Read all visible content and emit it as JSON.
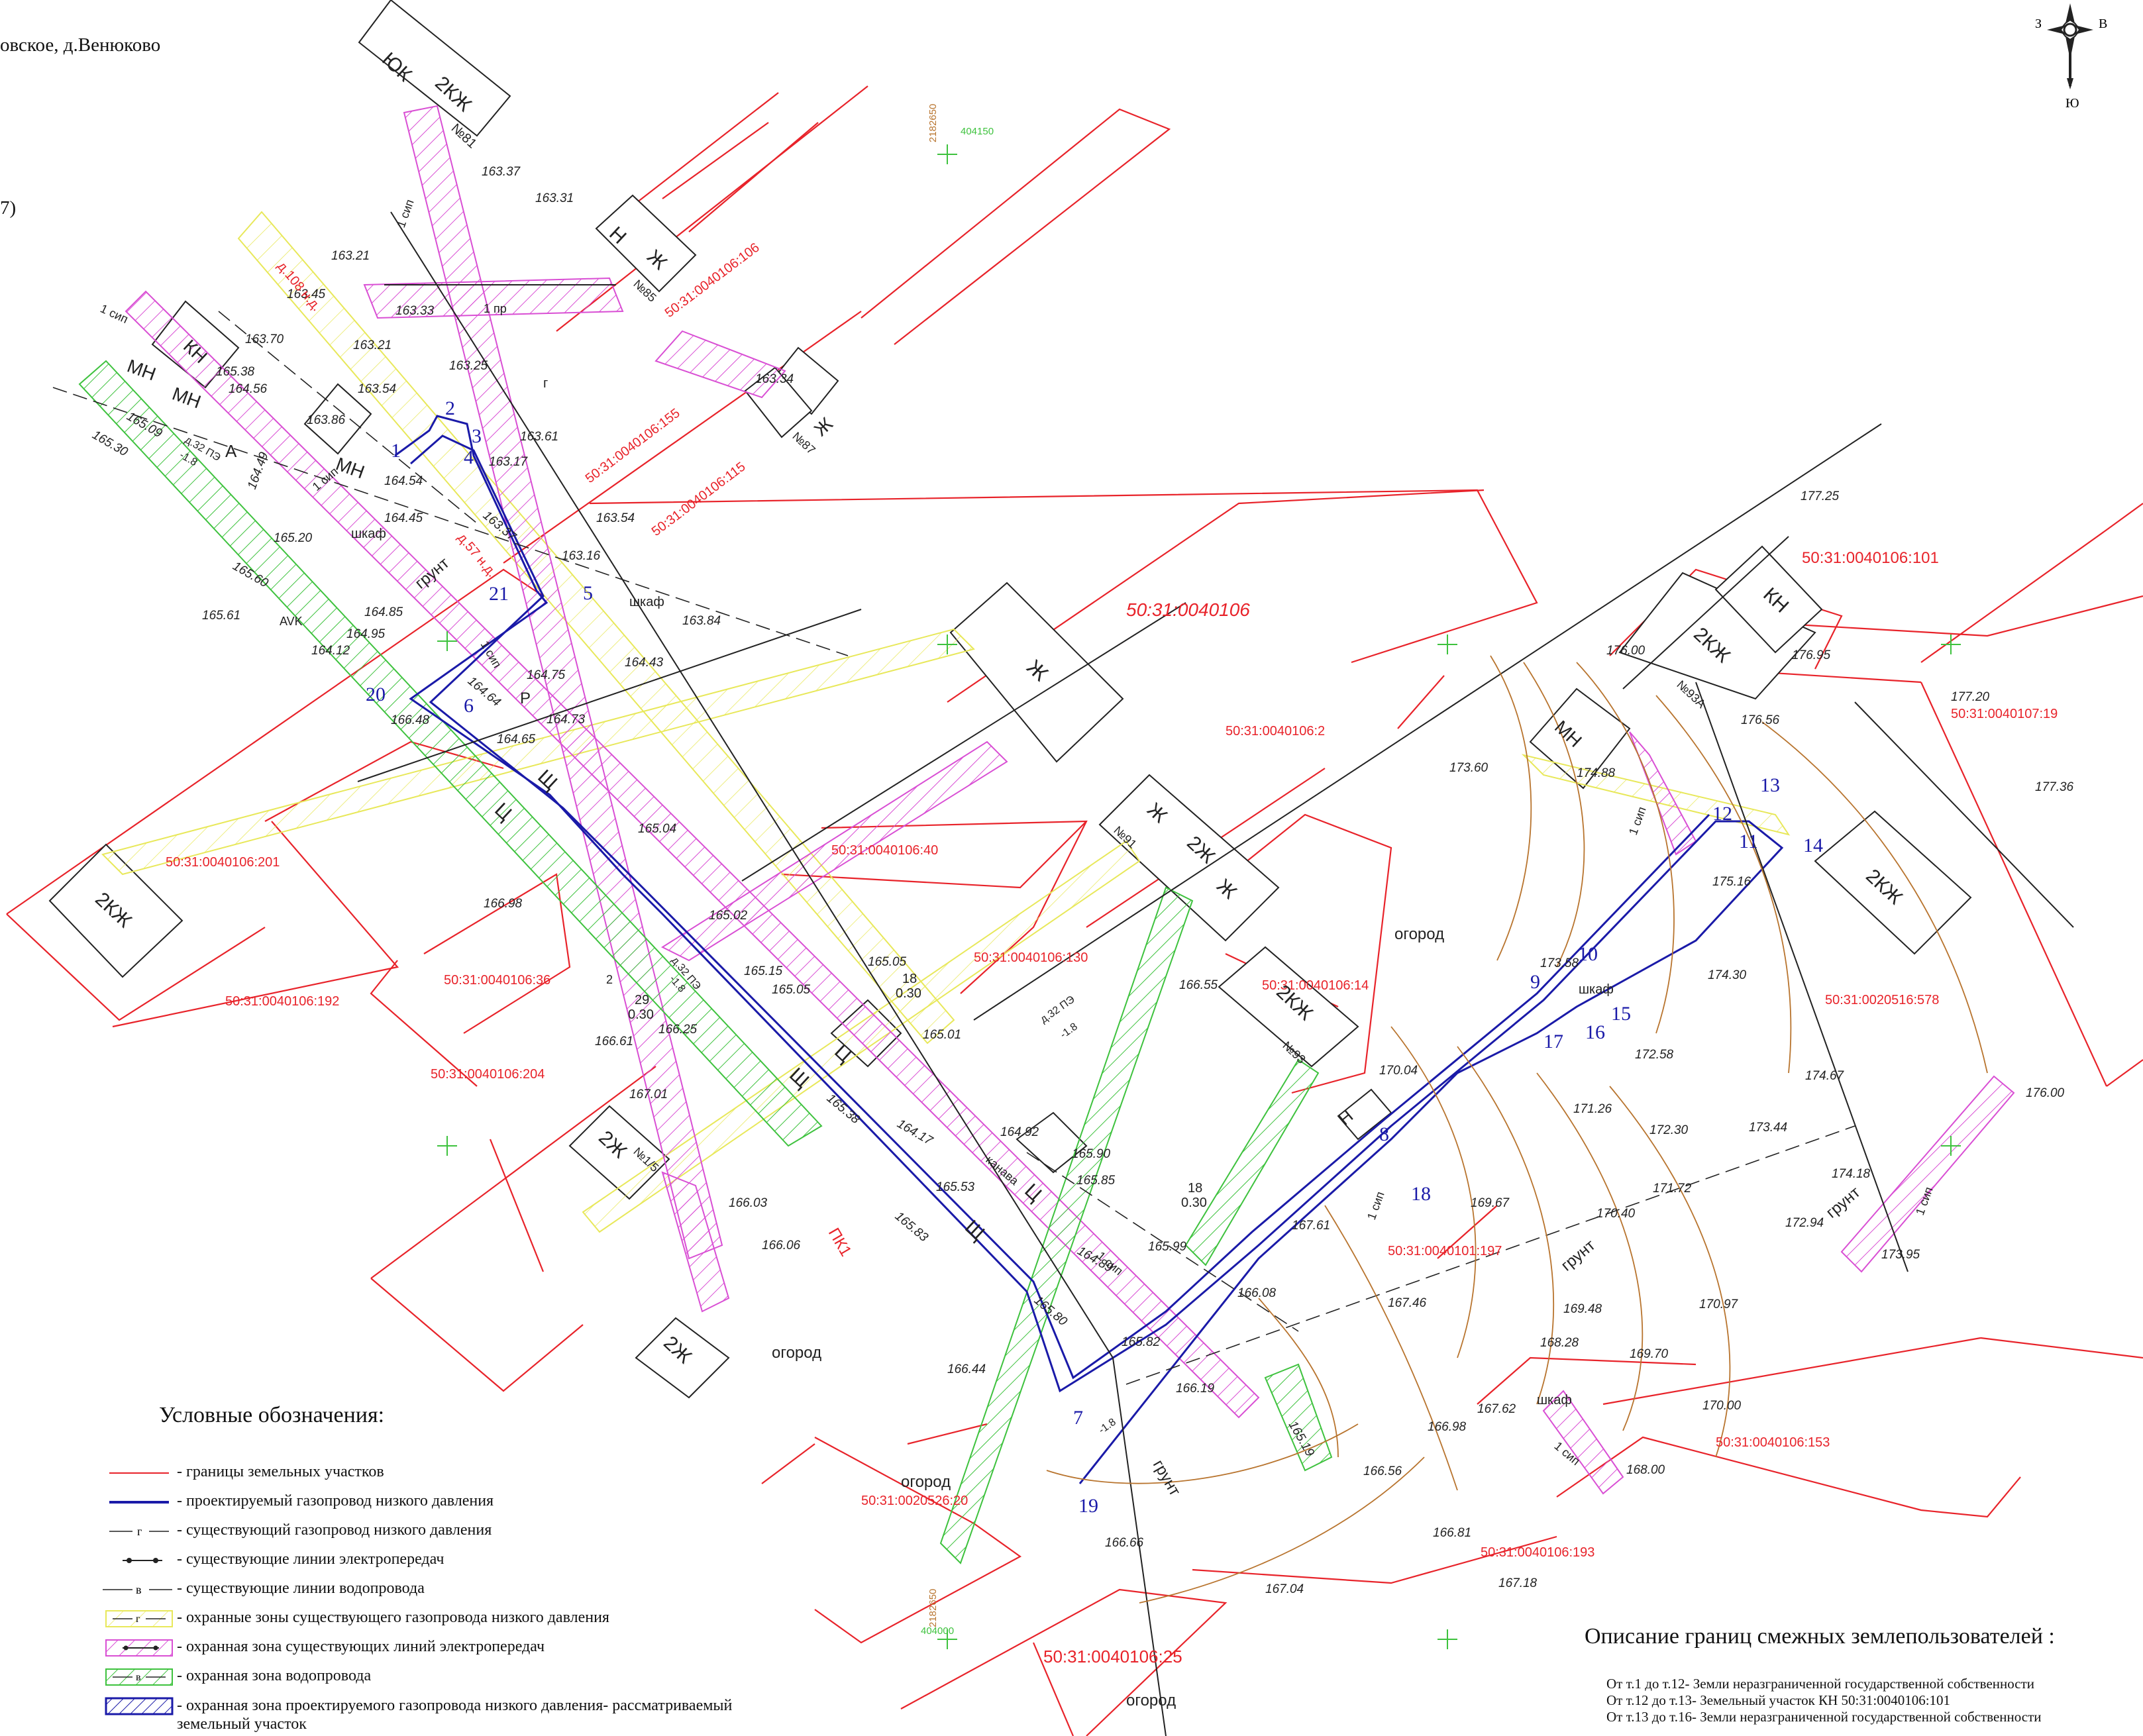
{
  "header": {
    "place": "овское, д.Венюково",
    "fragment": "7)"
  },
  "compass": {
    "west": "З",
    "east": "В",
    "south": "Ю"
  },
  "colors": {
    "parcel_border": "#e8232a",
    "planned_gas": "#1a1aa8",
    "gas_zone": "#e8e85a",
    "power_zone": "#d94fd4",
    "water_zone": "#3ec23e",
    "contour": "#b8742e"
  },
  "parcels": [
    {
      "id": "50:31:0040106:106"
    },
    {
      "id": "50:31:0040106:155"
    },
    {
      "id": "50:31:0040106:115"
    },
    {
      "id": "50:31:0040106:101"
    },
    {
      "id": "50:31:0040106"
    },
    {
      "id": "50:31:0040106:2"
    },
    {
      "id": "50:31:0040107:19"
    },
    {
      "id": "50:31:0040106:201"
    },
    {
      "id": "50:31:0040106:40"
    },
    {
      "id": "50:31:0040106:130"
    },
    {
      "id": "50:31:0040106:36"
    },
    {
      "id": "50:31:0040106:192"
    },
    {
      "id": "50:31:0040106:14"
    },
    {
      "id": "50:31:0020516:578"
    },
    {
      "id": "50:31:0040106:204"
    },
    {
      "id": "50:31:0040101:197"
    },
    {
      "id": "50:31:0040106:153"
    },
    {
      "id": "50:31:0020526:20"
    },
    {
      "id": "50:31:0040106:193"
    },
    {
      "id": "50:31:0040106:25"
    }
  ],
  "buildings": [
    {
      "label": "ЮК"
    },
    {
      "label": "2КЖ"
    },
    {
      "label": "№81"
    },
    {
      "label": "Н"
    },
    {
      "label": "Ж"
    },
    {
      "label": "№85"
    },
    {
      "label": "Ж"
    },
    {
      "label": "№87"
    },
    {
      "label": "КН"
    },
    {
      "label": "МН"
    },
    {
      "label": "МН"
    },
    {
      "label": "МН"
    },
    {
      "label": "Ж"
    },
    {
      "label": "2КЖ"
    },
    {
      "label": "КН"
    },
    {
      "label": "№93А"
    },
    {
      "label": "МН"
    },
    {
      "label": "Ж"
    },
    {
      "label": "2Ж"
    },
    {
      "label": "Ж"
    },
    {
      "label": "№91"
    },
    {
      "label": "2КЖ"
    },
    {
      "label": "№93"
    },
    {
      "label": "Н"
    },
    {
      "label": "2КЖ"
    },
    {
      "label": "2КЖ"
    },
    {
      "label": "2Ж"
    },
    {
      "label": "№1/5"
    },
    {
      "label": "2Ж"
    }
  ],
  "points": [
    "1",
    "2",
    "3",
    "4",
    "5",
    "6",
    "7",
    "8",
    "9",
    "10",
    "11",
    "12",
    "13",
    "14",
    "15",
    "16",
    "17",
    "18",
    "19",
    "20",
    "21"
  ],
  "elevations": [
    "163.37",
    "163.31",
    "163.21",
    "163.45",
    "163.70",
    "163.33",
    "163.21",
    "163.25",
    "165.38",
    "164.56",
    "163.54",
    "163.86",
    "165.09",
    "165.30",
    "164.49",
    "164.54",
    "164.45",
    "163.61",
    "163.17",
    "163.37",
    "163.16",
    "163.54",
    "163.34",
    "165.20",
    "165.60",
    "165.61",
    "164.85",
    "164.12",
    "164.95",
    "164.75",
    "164.64",
    "164.73",
    "164.43",
    "163.84",
    "166.48",
    "164.65",
    "165.04",
    "165.02",
    "165.15",
    "165.05",
    "165.05",
    "166.98",
    "166.61",
    "166.25",
    "167.01",
    "165.01",
    "165.38",
    "164.17",
    "164.92",
    "165.90",
    "165.85",
    "165.53",
    "165.83",
    "166.03",
    "166.06",
    "164.89",
    "165.99",
    "166.08",
    "165.80",
    "165.82",
    "166.19",
    "166.44",
    "166.55",
    "170.04",
    "167.61",
    "167.46",
    "166.98",
    "166.56",
    "165.19",
    "166.66",
    "166.81",
    "167.04",
    "167.18",
    "167.62",
    "168.28",
    "168.00",
    "169.48",
    "169.67",
    "170.40",
    "171.26",
    "172.30",
    "171.72",
    "172.58",
    "170.97",
    "169.70",
    "170.00",
    "172.94",
    "173.44",
    "174.18",
    "173.95",
    "174.30",
    "173.58",
    "174.67",
    "176.00",
    "175.16",
    "177.36",
    "177.20",
    "176.56",
    "176.95",
    "176.00",
    "174.88",
    "173.60",
    "177.25"
  ],
  "annotations": {
    "grunt": "грунт",
    "ogorod": "огород",
    "shkaf": "шкаф",
    "sip": "1 сип",
    "pr": "1 пр",
    "pk1": "ПК1",
    "kanava": "канава",
    "avk": "AVK",
    "pipe": "д.32 ПЭ",
    "depth": "-1.8",
    "well1_top": "18",
    "well1_bot": "0.30",
    "well2_top": "29",
    "well2_bot": "0.30",
    "well3_top": "18",
    "well3_bot": "0.30",
    "gas_label_1": "д.108 н.д.",
    "gas_label_2": "д.57 н.д.",
    "coord_1": "2182650",
    "coord_2": "404150",
    "coord_3": "2182650",
    "coord_4": "404000",
    "a_letter": "А",
    "r_letter": "Р",
    "c_letter": "Ц",
    "sch_letter": "Щ",
    "two": "2",
    "gas_glyph": "г"
  },
  "legend": {
    "title": "Условные обозначения:",
    "items": [
      {
        "text": "- границы земельных участков"
      },
      {
        "text": "- проектируемый газопровод низкого давления"
      },
      {
        "text": "- существующий газопровод низкого давления"
      },
      {
        "text": "- существующие линии электропередач"
      },
      {
        "text": "- существующие линии водопровода"
      },
      {
        "text": "- охранные зоны существующего газопровода низкого давления"
      },
      {
        "text": "- охранная зона существующих линий электропередач"
      },
      {
        "text": "- охранная зона водопровода"
      },
      {
        "text": "- охранная зона проектируемого газопровода низкого давления- рассматриваемый земельный участок"
      }
    ],
    "g_letter": "г",
    "v_letter": "в"
  },
  "description": {
    "title": "Описание границ смежных землепользователей :",
    "lines": [
      "От т.1 до т.12- Земли  неразграниченной государственной собственности",
      "От т.12 до т.13- Земельный участок КН 50:31:0040106:101",
      "От т.13 до т.16- Земли  неразграниченной государственной собственности"
    ]
  }
}
